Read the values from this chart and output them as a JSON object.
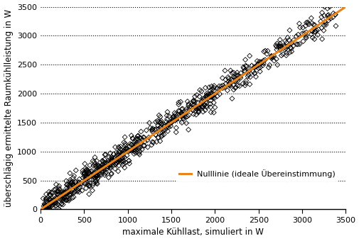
{
  "title": "",
  "xlabel": "maximale Kühllast, simuliert in W",
  "ylabel": "überschlägig ermittelte Raumkühlleistung in W",
  "xlim": [
    0,
    3500
  ],
  "ylim": [
    0,
    3500
  ],
  "xticks": [
    0,
    500,
    1000,
    1500,
    2000,
    2500,
    3000,
    3500
  ],
  "yticks": [
    0,
    500,
    1000,
    1500,
    2000,
    2500,
    3000,
    3500
  ],
  "line_color": "#E8841A",
  "line_label": "Nulllinie (ideale Übereinstimmung)",
  "marker_color": "none",
  "marker_edge_color": "#000000",
  "marker_style": "D",
  "marker_size": 3.5,
  "marker_linewidth": 0.6,
  "grid_style": "dotted",
  "grid_color": "#000000",
  "grid_alpha": 1.0,
  "grid_linewidth": 0.8,
  "background_color": "#ffffff",
  "scatter_seed": 42,
  "scatter_n": 800,
  "scatter_x_min": 20,
  "scatter_x_max": 3400,
  "scatter_noise_std": 110,
  "xlabel_fontsize": 8.5,
  "ylabel_fontsize": 8.5,
  "tick_fontsize": 8,
  "legend_fontsize": 8,
  "line_width": 2.2
}
